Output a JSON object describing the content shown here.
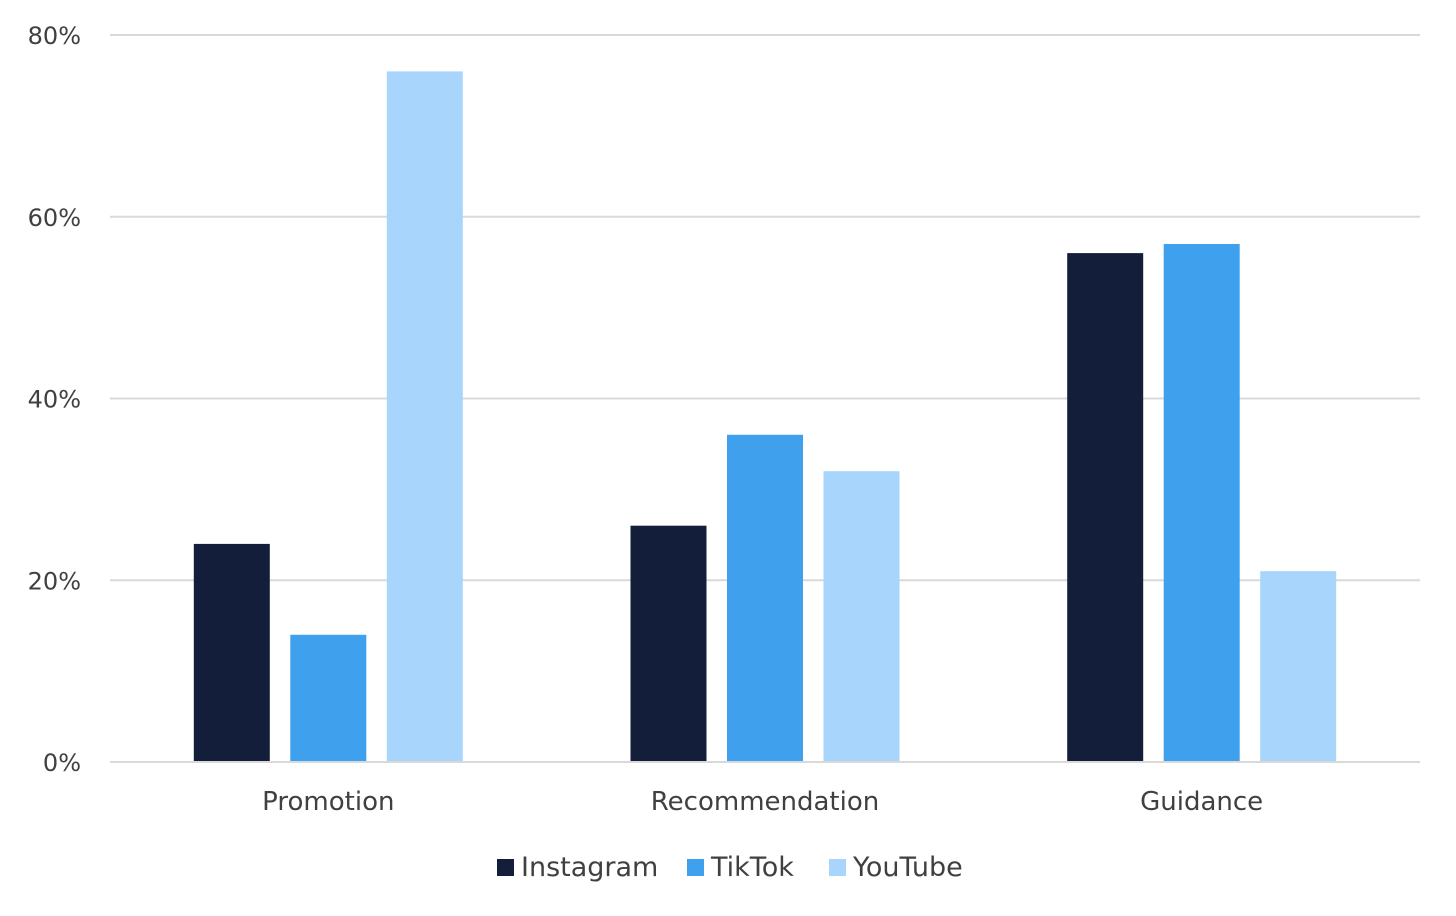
{
  "chart_data": {
    "type": "bar",
    "title": "",
    "xlabel": "",
    "ylabel": "",
    "categories": [
      "Promotion",
      "Recommendation",
      "Guidance"
    ],
    "series": [
      {
        "name": "Instagram",
        "color": "#131F3A",
        "values": [
          24,
          26,
          56
        ]
      },
      {
        "name": "TikTok",
        "color": "#3FA1EE",
        "values": [
          14,
          36,
          57
        ]
      },
      {
        "name": "YouTube",
        "color": "#A8D5FC",
        "values": [
          76,
          32,
          21
        ]
      }
    ],
    "ylim": [
      0,
      80
    ],
    "yticks": [
      0,
      20,
      40,
      60,
      80
    ],
    "ytick_labels": [
      "0%",
      "20%",
      "40%",
      "60%",
      "80%"
    ],
    "grid": true,
    "legend_position": "bottom"
  }
}
